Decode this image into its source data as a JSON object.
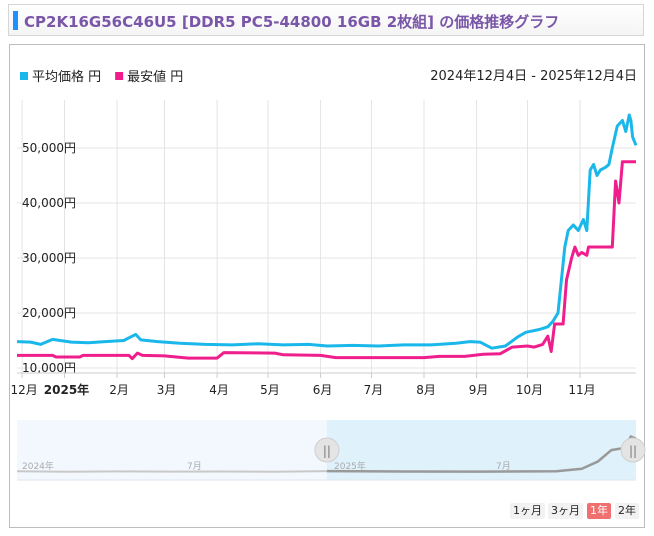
{
  "page": {
    "title": "CP2K16G56C46U5 [DDR5 PC5-44800 16GB 2枚組] の価格推移グラフ",
    "date_range": "2024年12月4日 - 2025年12月4日"
  },
  "legend": [
    {
      "label": "平均価格 円",
      "color": "#1ab7ea"
    },
    {
      "label": "最安値 円",
      "color": "#f01e8c"
    }
  ],
  "navigator": {
    "labels": [
      "2024年",
      "7月",
      "2025年",
      "7月"
    ],
    "handle_glyph": "||"
  },
  "range_buttons": [
    {
      "label": "1ヶ月",
      "active": false
    },
    {
      "label": "3ヶ月",
      "active": false
    },
    {
      "label": "1年",
      "active": true
    },
    {
      "label": "2年",
      "active": false
    }
  ],
  "chart_data": {
    "type": "line",
    "x_unit": "date",
    "x_range": [
      "2024-12-04",
      "2025-12-04"
    ],
    "y_range": [
      10000,
      60000
    ],
    "y_ticks": [
      10000,
      20000,
      30000,
      40000,
      50000
    ],
    "y_tick_labels": [
      "10,000円",
      "20,000円",
      "30,000円",
      "40,000円",
      "50,000円"
    ],
    "x_ticks": [
      {
        "date": "2024-12-07",
        "label": "12月",
        "bold": false
      },
      {
        "date": "2025-01-01",
        "label": "2025年",
        "bold": true
      },
      {
        "date": "2025-02-01",
        "label": "2月",
        "bold": false
      },
      {
        "date": "2025-03-01",
        "label": "3月",
        "bold": false
      },
      {
        "date": "2025-04-01",
        "label": "4月",
        "bold": false
      },
      {
        "date": "2025-05-01",
        "label": "5月",
        "bold": false
      },
      {
        "date": "2025-06-01",
        "label": "6月",
        "bold": false
      },
      {
        "date": "2025-07-01",
        "label": "7月",
        "bold": false
      },
      {
        "date": "2025-08-01",
        "label": "8月",
        "bold": false
      },
      {
        "date": "2025-09-01",
        "label": "9月",
        "bold": false
      },
      {
        "date": "2025-10-01",
        "label": "10月",
        "bold": false
      },
      {
        "date": "2025-11-01",
        "label": "11月",
        "bold": false
      }
    ],
    "grid": true,
    "legend_position": "top-left",
    "series": [
      {
        "name": "平均価格 円",
        "color": "#1ab7ea",
        "points": [
          [
            "2024-12-04",
            14800
          ],
          [
            "2024-12-12",
            14700
          ],
          [
            "2024-12-18",
            14300
          ],
          [
            "2024-12-25",
            15200
          ],
          [
            "2025-01-05",
            14700
          ],
          [
            "2025-01-15",
            14600
          ],
          [
            "2025-01-25",
            14800
          ],
          [
            "2025-02-05",
            15000
          ],
          [
            "2025-02-12",
            16100
          ],
          [
            "2025-02-15",
            15100
          ],
          [
            "2025-02-25",
            14800
          ],
          [
            "2025-03-10",
            14500
          ],
          [
            "2025-03-25",
            14300
          ],
          [
            "2025-04-10",
            14200
          ],
          [
            "2025-04-25",
            14400
          ],
          [
            "2025-05-10",
            14200
          ],
          [
            "2025-05-25",
            14300
          ],
          [
            "2025-06-05",
            14000
          ],
          [
            "2025-06-20",
            14100
          ],
          [
            "2025-07-05",
            14000
          ],
          [
            "2025-07-20",
            14200
          ],
          [
            "2025-08-05",
            14200
          ],
          [
            "2025-08-20",
            14500
          ],
          [
            "2025-08-28",
            14800
          ],
          [
            "2025-09-03",
            14700
          ],
          [
            "2025-09-10",
            13600
          ],
          [
            "2025-09-18",
            14000
          ],
          [
            "2025-09-25",
            15600
          ],
          [
            "2025-09-30",
            16500
          ],
          [
            "2025-10-08",
            17000
          ],
          [
            "2025-10-13",
            17500
          ],
          [
            "2025-10-16",
            18500
          ],
          [
            "2025-10-19",
            20000
          ],
          [
            "2025-10-21",
            26000
          ],
          [
            "2025-10-23",
            32000
          ],
          [
            "2025-10-25",
            35000
          ],
          [
            "2025-10-28",
            36000
          ],
          [
            "2025-10-31",
            35000
          ],
          [
            "2025-11-03",
            37000
          ],
          [
            "2025-11-05",
            35000
          ],
          [
            "2025-11-07",
            46000
          ],
          [
            "2025-11-09",
            47000
          ],
          [
            "2025-11-11",
            45000
          ],
          [
            "2025-11-13",
            46000
          ],
          [
            "2025-11-16",
            46500
          ],
          [
            "2025-11-18",
            47000
          ],
          [
            "2025-11-20",
            50000
          ],
          [
            "2025-11-23",
            54000
          ],
          [
            "2025-11-26",
            55000
          ],
          [
            "2025-11-28",
            53000
          ],
          [
            "2025-11-30",
            56000
          ],
          [
            "2025-12-01",
            55000
          ],
          [
            "2025-12-02",
            52000
          ],
          [
            "2025-12-04",
            50500
          ]
        ]
      },
      {
        "name": "最安値 円",
        "color": "#f01e8c",
        "points": [
          [
            "2024-12-04",
            12300
          ],
          [
            "2024-12-25",
            12300
          ],
          [
            "2024-12-27",
            12000
          ],
          [
            "2025-01-10",
            12000
          ],
          [
            "2025-01-12",
            12300
          ],
          [
            "2025-02-08",
            12300
          ],
          [
            "2025-02-10",
            11700
          ],
          [
            "2025-02-13",
            12700
          ],
          [
            "2025-02-16",
            12300
          ],
          [
            "2025-03-01",
            12200
          ],
          [
            "2025-03-15",
            11800
          ],
          [
            "2025-04-01",
            11800
          ],
          [
            "2025-04-05",
            12800
          ],
          [
            "2025-05-05",
            12700
          ],
          [
            "2025-05-10",
            12400
          ],
          [
            "2025-06-01",
            12300
          ],
          [
            "2025-06-10",
            11900
          ],
          [
            "2025-07-20",
            11900
          ],
          [
            "2025-08-01",
            11900
          ],
          [
            "2025-08-10",
            12100
          ],
          [
            "2025-08-25",
            12100
          ],
          [
            "2025-09-05",
            12500
          ],
          [
            "2025-09-15",
            12600
          ],
          [
            "2025-09-22",
            13800
          ],
          [
            "2025-10-01",
            14000
          ],
          [
            "2025-10-05",
            13800
          ],
          [
            "2025-10-10",
            14300
          ],
          [
            "2025-10-13",
            15800
          ],
          [
            "2025-10-15",
            13000
          ],
          [
            "2025-10-17",
            18000
          ],
          [
            "2025-10-22",
            18000
          ],
          [
            "2025-10-24",
            26000
          ],
          [
            "2025-10-27",
            30000
          ],
          [
            "2025-10-29",
            32000
          ],
          [
            "2025-10-31",
            30500
          ],
          [
            "2025-11-02",
            31000
          ],
          [
            "2025-11-05",
            30500
          ],
          [
            "2025-11-06",
            32000
          ],
          [
            "2025-11-20",
            32000
          ],
          [
            "2025-11-22",
            44000
          ],
          [
            "2025-11-24",
            40000
          ],
          [
            "2025-11-26",
            47500
          ],
          [
            "2025-12-04",
            47500
          ]
        ]
      }
    ],
    "navigator_series": {
      "color": "#999999",
      "x_range": [
        "2023-12-04",
        "2025-12-04"
      ],
      "selected_range": [
        "2024-12-04",
        "2025-12-04"
      ],
      "points": [
        [
          "2023-12-04",
          12600
        ],
        [
          "2024-02-01",
          12200
        ],
        [
          "2024-04-01",
          12500
        ],
        [
          "2024-06-01",
          12300
        ],
        [
          "2024-08-01",
          12400
        ],
        [
          "2024-10-01",
          12200
        ],
        [
          "2024-12-04",
          12800
        ],
        [
          "2025-03-01",
          12400
        ],
        [
          "2025-06-01",
          12300
        ],
        [
          "2025-09-01",
          12600
        ],
        [
          "2025-10-01",
          15000
        ],
        [
          "2025-10-20",
          22000
        ],
        [
          "2025-11-05",
          33000
        ],
        [
          "2025-11-20",
          35000
        ],
        [
          "2025-11-28",
          46000
        ],
        [
          "2025-12-04",
          44000
        ]
      ]
    }
  }
}
